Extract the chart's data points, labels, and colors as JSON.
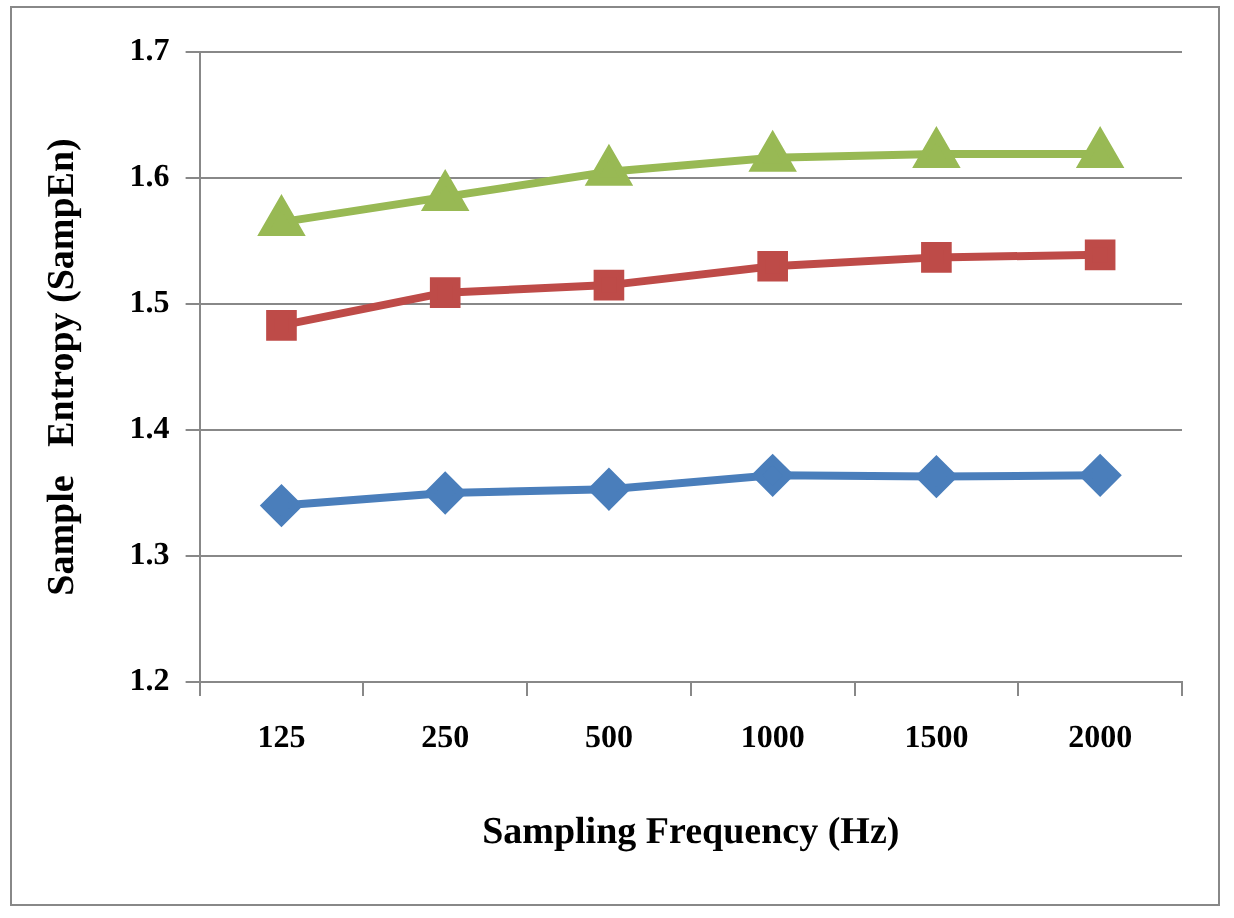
{
  "chart_data": {
    "type": "line",
    "xlabel": "Sampling Frequency (Hz)",
    "ylabel": "Sample   Entropy (SampEn)",
    "categories": [
      "125",
      "250",
      "500",
      "1000",
      "1500",
      "2000"
    ],
    "ylim": [
      1.2,
      1.7
    ],
    "yticks": [
      1.2,
      1.3,
      1.4,
      1.5,
      1.6,
      1.7
    ],
    "grid": "y",
    "legend": false,
    "series": [
      {
        "color": "#4a7ebb",
        "marker": "diamond",
        "values": [
          1.34,
          1.35,
          1.353,
          1.364,
          1.363,
          1.364
        ]
      },
      {
        "color": "#be4b48",
        "marker": "square",
        "values": [
          1.483,
          1.509,
          1.515,
          1.53,
          1.537,
          1.539
        ]
      },
      {
        "color": "#98b954",
        "marker": "triangle",
        "values": [
          1.565,
          1.585,
          1.605,
          1.616,
          1.619,
          1.619
        ]
      }
    ]
  }
}
